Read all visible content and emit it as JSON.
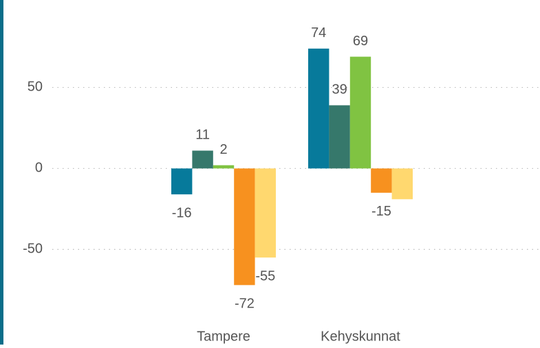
{
  "chart_data": {
    "type": "bar",
    "categories": [
      "Tampere",
      "Kehyskunnat"
    ],
    "series": [
      {
        "color": "#077a9b",
        "values": [
          -16,
          74
        ],
        "value_labels": [
          "-16",
          "74"
        ]
      },
      {
        "color": "#36786b",
        "values": [
          11,
          39
        ],
        "value_labels": [
          "11",
          "39"
        ]
      },
      {
        "color": "#80c342",
        "values": [
          2,
          69
        ],
        "value_labels": [
          "2",
          "69"
        ]
      },
      {
        "color": "#f7911f",
        "values": [
          -72,
          -15
        ],
        "value_labels": [
          "-72",
          "-15"
        ]
      },
      {
        "color": "#ffd86f",
        "values": [
          -55,
          -19
        ],
        "value_labels": [
          "-55",
          null
        ]
      }
    ],
    "ylim": [
      -90,
      104
    ],
    "yticks": [
      -50,
      0,
      50
    ],
    "grid": true
  }
}
